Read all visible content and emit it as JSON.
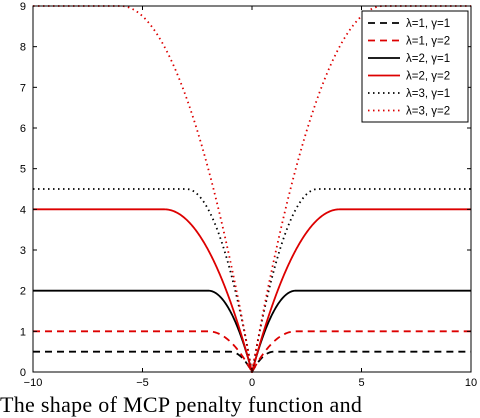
{
  "caption": "The shape of MCP penalty function and",
  "chart_data": {
    "type": "line",
    "title": "",
    "xlabel": "",
    "ylabel": "",
    "xlim": [
      -10,
      10
    ],
    "ylim": [
      0,
      9
    ],
    "xticks": [
      -10,
      -5,
      0,
      5,
      10
    ],
    "yticks": [
      0,
      1,
      2,
      3,
      4,
      5,
      6,
      7,
      8,
      9
    ],
    "grid": false,
    "legend_position": "top-right",
    "series": [
      {
        "name": "λ=1, γ=1",
        "lambda": 1,
        "gamma": 1,
        "color": "#000000",
        "dash": "dashed",
        "x": [
          -10,
          -1,
          -0.5,
          0,
          0.5,
          1,
          10
        ],
        "y": [
          0.5,
          0.5,
          0.375,
          0,
          0.375,
          0.5,
          0.5
        ]
      },
      {
        "name": "λ=1, γ=2",
        "lambda": 1,
        "gamma": 2,
        "color": "#dd0000",
        "dash": "dashed",
        "x": [
          -10,
          -2,
          -1,
          0,
          1,
          2,
          10
        ],
        "y": [
          1,
          1,
          0.75,
          0,
          0.75,
          1,
          1
        ]
      },
      {
        "name": "λ=2, γ=1",
        "lambda": 2,
        "gamma": 1,
        "color": "#000000",
        "dash": "solid",
        "x": [
          -10,
          -2,
          -1,
          0,
          1,
          2,
          10
        ],
        "y": [
          2,
          2,
          1.5,
          0,
          1.5,
          2,
          2
        ]
      },
      {
        "name": "λ=2, γ=2",
        "lambda": 2,
        "gamma": 2,
        "color": "#dd0000",
        "dash": "solid",
        "x": [
          -10,
          -4,
          -2,
          0,
          2,
          4,
          10
        ],
        "y": [
          4,
          4,
          3,
          0,
          3,
          4,
          4
        ]
      },
      {
        "name": "λ=3, γ=1",
        "lambda": 3,
        "gamma": 1,
        "color": "#000000",
        "dash": "dotted",
        "x": [
          -10,
          -3,
          -1.5,
          0,
          1.5,
          3,
          10
        ],
        "y": [
          4.5,
          4.5,
          3.375,
          0,
          3.375,
          4.5,
          4.5
        ]
      },
      {
        "name": "λ=3, γ=2",
        "lambda": 3,
        "gamma": 2,
        "color": "#dd0000",
        "dash": "dotted",
        "x": [
          -10,
          -6,
          -3,
          0,
          3,
          6,
          10
        ],
        "y": [
          9,
          9,
          6.75,
          0,
          6.75,
          9,
          9
        ]
      }
    ]
  }
}
